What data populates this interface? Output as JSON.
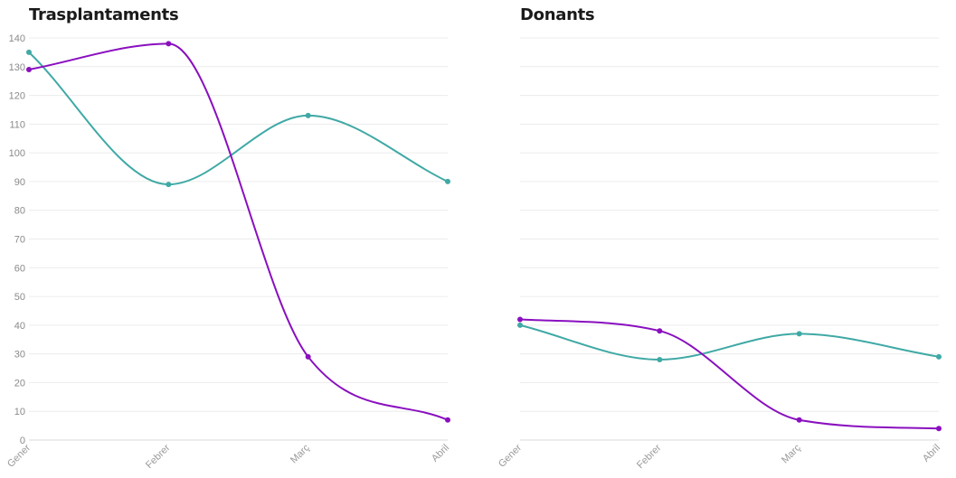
{
  "chart_data": [
    {
      "type": "line",
      "title": "Trasplantaments",
      "categories": [
        "Gener",
        "Febrer",
        "Març",
        "Abril"
      ],
      "series": [
        {
          "color": "#3fa9a5",
          "values": [
            135,
            89,
            113,
            90
          ]
        },
        {
          "color": "#8a0fbf",
          "values": [
            129,
            138,
            29,
            7
          ]
        }
      ],
      "ylim": [
        0,
        140
      ],
      "yticks": [
        0,
        10,
        20,
        30,
        40,
        50,
        60,
        70,
        80,
        90,
        100,
        110,
        120,
        130,
        140
      ],
      "show_y_tick_labels": true,
      "grid": true,
      "curve": "smooth"
    },
    {
      "type": "line",
      "title": "Donants",
      "categories": [
        "Gener",
        "Febrer",
        "Març",
        "Abril"
      ],
      "series": [
        {
          "color": "#3fa9a5",
          "values": [
            40,
            28,
            37,
            29
          ]
        },
        {
          "color": "#8a0fbf",
          "values": [
            42,
            38,
            7,
            4
          ]
        }
      ],
      "ylim": [
        0,
        140
      ],
      "yticks": [
        0,
        10,
        20,
        30,
        40,
        50,
        60,
        70,
        80,
        90,
        100,
        110,
        120,
        130,
        140
      ],
      "show_y_tick_labels": false,
      "grid": true,
      "curve": "smooth"
    }
  ]
}
